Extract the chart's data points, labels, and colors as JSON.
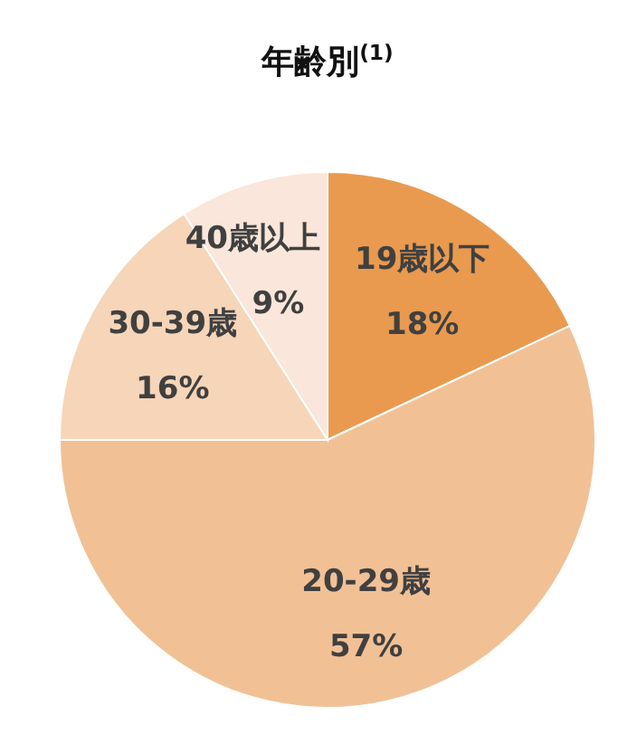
{
  "chart_data": {
    "type": "pie",
    "title": "年齢別$^{(1)}$",
    "categories": [
      "19歳以下",
      "20-29歳",
      "30-39歳",
      "40歳以上"
    ],
    "values": [
      18,
      57,
      16,
      9
    ],
    "value_labels": [
      "18%",
      "57%",
      "16%",
      "9%"
    ],
    "colors": [
      "#e99a4f",
      "#f1c195",
      "#f6d5b8",
      "#fae6da"
    ]
  }
}
